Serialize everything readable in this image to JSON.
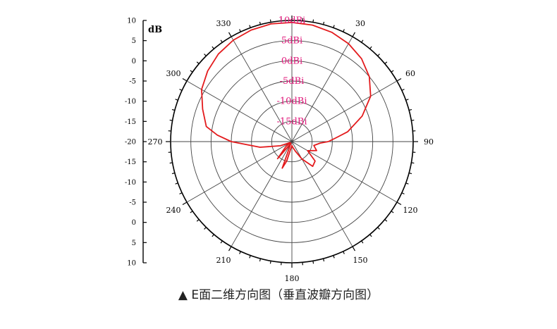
{
  "chart_data": {
    "type": "polar-line",
    "ylabel": "dB",
    "radial_ticks": [
      "10",
      "5",
      "0",
      "-5",
      "-10",
      "-15",
      "-20",
      "-15",
      "-10",
      "-5",
      "0",
      "5",
      "10"
    ],
    "ring_labels": [
      "10dBi",
      "5dBi",
      "0dBi",
      "-5dBi",
      "-10dBi",
      "-15dBi"
    ],
    "angle_ticks": [
      0,
      30,
      60,
      90,
      120,
      150,
      180,
      210,
      240,
      270,
      300,
      330
    ],
    "angle_labels": [
      "",
      "30",
      "60",
      "90",
      "120",
      "150",
      "180",
      "210",
      "240",
      "270",
      "300",
      "330"
    ],
    "rlim": [
      -20,
      10
    ],
    "grid": true,
    "series": [
      {
        "color": "#e31a1c",
        "theta": [
          0,
          10,
          20,
          30,
          40,
          50,
          60,
          70,
          80,
          85,
          90,
          93,
          100,
          110,
          120,
          130,
          140,
          150,
          160,
          170,
          180,
          190,
          195,
          200,
          210,
          220,
          230,
          240,
          250,
          260,
          270,
          275,
          280,
          290,
          300,
          310,
          320,
          330,
          340,
          350,
          360
        ],
        "r": [
          9.5,
          9.3,
          8.8,
          8.0,
          6.8,
          5.0,
          2.5,
          -1.5,
          -6.0,
          -9.0,
          -11.0,
          -13.0,
          -14.5,
          -13.5,
          -15.5,
          -12.5,
          -12.0,
          -15.0,
          -17.5,
          -18.5,
          -19.0,
          -18.0,
          -15.0,
          -13.0,
          -19.5,
          -14.5,
          -18.0,
          -19.5,
          -17.0,
          -12.0,
          -5.0,
          -1.5,
          1.5,
          3.5,
          5.8,
          7.2,
          8.3,
          9.0,
          9.4,
          9.6,
          9.5
        ]
      }
    ]
  },
  "caption": "▲ E面二维方向图（垂直波瓣方向图）"
}
